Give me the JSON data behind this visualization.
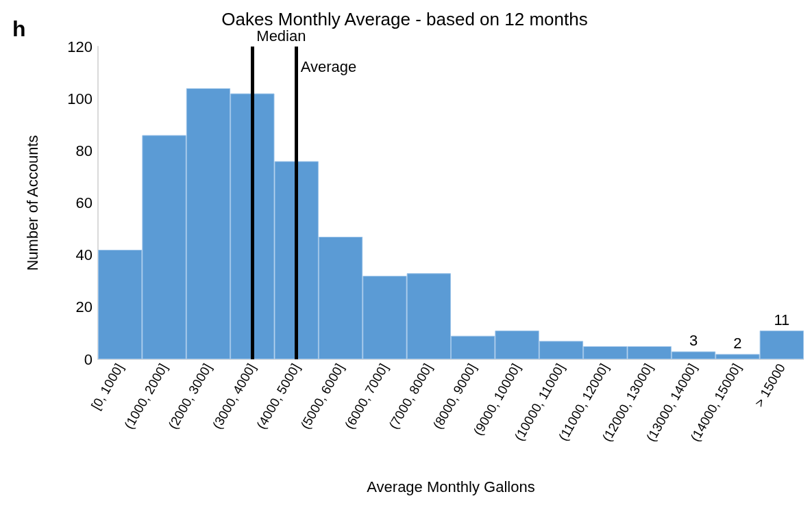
{
  "chart_data": {
    "type": "bar",
    "title": "Oakes Monthly Average - based on 12 months",
    "xlabel": "Average Monthly Gallons",
    "ylabel": "Number of Accounts",
    "categories": [
      "[0, 1000]",
      "(1000, 2000]",
      "(2000, 3000]",
      "(3000, 4000]",
      "(4000, 5000]",
      "(5000, 6000]",
      "(6000, 7000]",
      "(7000, 8000]",
      "(8000, 9000]",
      "(9000, 10000]",
      "(10000, 11000]",
      "(11000, 12000]",
      "(12000, 13000]",
      "(13000, 14000]",
      "(14000, 15000]",
      "> 15000"
    ],
    "values": [
      42,
      86,
      104,
      102,
      76,
      47,
      32,
      33,
      9,
      11,
      7,
      5,
      5,
      3,
      2,
      11
    ],
    "value_labels": [
      null,
      null,
      null,
      null,
      null,
      null,
      null,
      null,
      null,
      null,
      null,
      null,
      null,
      "3",
      "2",
      "11"
    ],
    "color": "#5b9bd5",
    "ylim": [
      0,
      120
    ],
    "yticks": [
      0,
      20,
      40,
      60,
      80,
      100,
      120
    ],
    "grid": false,
    "ref_lines": [
      {
        "axis": "x",
        "value": "(3000, 4000]",
        "label": "Median",
        "color": "#000000"
      },
      {
        "axis": "x",
        "value": "(4000, 5000]",
        "label": "Average",
        "color": "#000000"
      }
    ],
    "annotations": [
      "h"
    ]
  }
}
